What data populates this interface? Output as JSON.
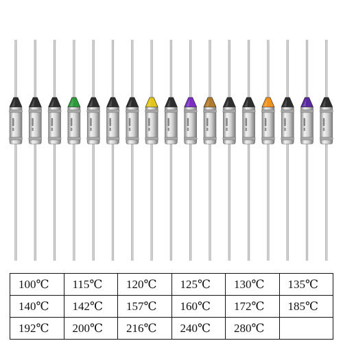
{
  "fuses": [
    {
      "cap_color": "#2e2e2e"
    },
    {
      "cap_color": "#2e2e2e"
    },
    {
      "cap_color": "#2e2e2e"
    },
    {
      "cap_color": "#2f9a3c"
    },
    {
      "cap_color": "#2e2e2e"
    },
    {
      "cap_color": "#2e2e2e"
    },
    {
      "cap_color": "#2e2e2e"
    },
    {
      "cap_color": "#e3c51a"
    },
    {
      "cap_color": "#2e2e2e"
    },
    {
      "cap_color": "#7a2fc2"
    },
    {
      "cap_color": "#b07a2a"
    },
    {
      "cap_color": "#2e2e2e"
    },
    {
      "cap_color": "#2e2e2e"
    },
    {
      "cap_color": "#f0921c"
    },
    {
      "cap_color": "#2e2e2e"
    },
    {
      "cap_color": "#5a2aa0"
    },
    {
      "cap_color": "#2e2e2e"
    }
  ],
  "table": {
    "rows": [
      [
        "100℃",
        "115℃",
        "120℃",
        "125℃",
        "130℃",
        "135℃"
      ],
      [
        "140℃",
        "142℃",
        "157℃",
        "160℃",
        "172℃",
        "185℃"
      ],
      [
        "192℃",
        "200℃",
        "216℃",
        "240℃",
        "280℃",
        ""
      ]
    ]
  }
}
